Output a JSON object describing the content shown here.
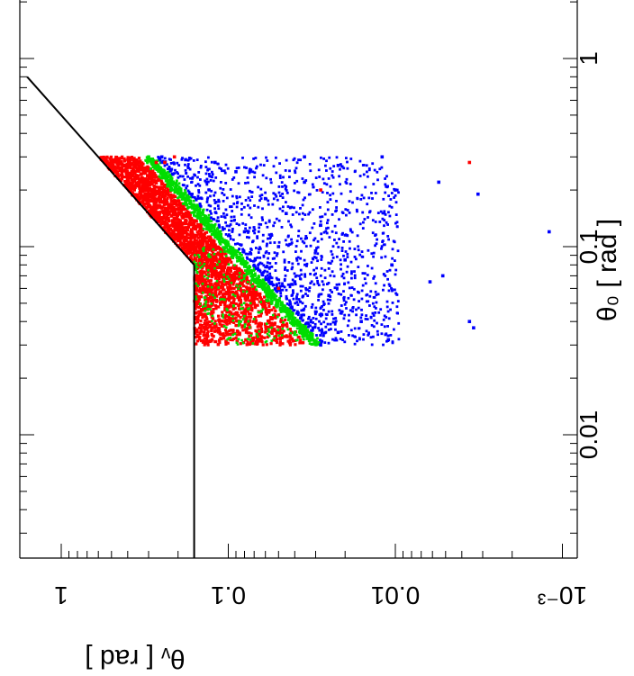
{
  "chart_data": {
    "type": "scatter",
    "title": "",
    "xlabel": "θ₀ [ rad ]",
    "ylabel": "θᵥ [ rad ]",
    "x_axis": {
      "quantity": "theta_0",
      "unit": "rad",
      "scale": "log",
      "range": [
        0.001,
        2.0
      ],
      "tick_labels": [
        {
          "value": 1,
          "label": "1"
        },
        {
          "value": 0.1,
          "label": "0.1"
        },
        {
          "value": 0.01,
          "label": "0.01"
        }
      ]
    },
    "y_axis": {
      "quantity": "theta_v",
      "unit": "rad",
      "scale": "log",
      "range": [
        0.001,
        2.0
      ],
      "tick_labels": [
        {
          "value": 1,
          "label": "1"
        },
        {
          "value": 0.1,
          "label": "0.1"
        },
        {
          "value": 0.01,
          "label": "0.01"
        },
        {
          "value": 0.001,
          "label": "10⁻³"
        }
      ]
    },
    "orientation": "figure rotated 90° clockwise: θ₀ axis runs vertically (increasing upward) with labels on the right; θᵥ axis runs horizontally (increasing leftward) with labels at the bottom",
    "grid": false,
    "legend": "none",
    "colors": {
      "red": "#ff0000",
      "green": "#00dd00",
      "blue": "#0000ff",
      "boundary": "#000000"
    },
    "boundary_lines": [
      {
        "name": "upper diagonal",
        "points": [
          {
            "theta0": 0.8,
            "thetav": 1.6
          },
          {
            "theta0": 0.08,
            "thetav": 0.16
          }
        ]
      },
      {
        "name": "plateau",
        "points": [
          {
            "theta0": 0.08,
            "thetav": 0.16
          },
          {
            "theta0": 0.001,
            "thetav": 0.16
          }
        ]
      }
    ],
    "regions": {
      "theta0_range": [
        0.03,
        0.3
      ],
      "red": {
        "description": "dense filled region between θᵥ ≈ max(0.16, 2·θ₀) and θᵥ ≈ θ₀·1.1"
      },
      "green": {
        "description": "thin band around θᵥ ≈ θ₀ (from about 0.9·θ₀ to 1.2·θ₀)"
      },
      "blue": {
        "description": "scattered points with θᵥ below θ₀, extending down to about 0.01 rad"
      }
    },
    "series": [
      {
        "name": "",
        "color": "blue",
        "points": [
          {
            "x": 0.3,
            "y": 0.25
          },
          {
            "x": 0.29,
            "y": 0.18
          },
          {
            "x": 0.28,
            "y": 0.12
          },
          {
            "x": 0.25,
            "y": 0.09
          },
          {
            "x": 0.22,
            "y": 0.035
          },
          {
            "x": 0.2,
            "y": 0.01
          },
          {
            "x": 0.3,
            "y": 0.012
          },
          {
            "x": 0.3,
            "y": 0.035
          },
          {
            "x": 0.27,
            "y": 0.022
          },
          {
            "x": 0.18,
            "y": 0.06
          },
          {
            "x": 0.15,
            "y": 0.045
          },
          {
            "x": 0.13,
            "y": 0.028
          },
          {
            "x": 0.12,
            "y": 0.08
          },
          {
            "x": 0.1,
            "y": 0.05
          },
          {
            "x": 0.095,
            "y": 0.03
          },
          {
            "x": 0.085,
            "y": 0.02
          },
          {
            "x": 0.08,
            "y": 0.0105
          },
          {
            "x": 0.065,
            "y": 0.04
          },
          {
            "x": 0.055,
            "y": 0.025
          },
          {
            "x": 0.045,
            "y": 0.03
          },
          {
            "x": 0.04,
            "y": 0.016
          },
          {
            "x": 0.035,
            "y": 0.022
          },
          {
            "x": 0.032,
            "y": 0.011
          },
          {
            "x": 0.03,
            "y": 0.028
          },
          {
            "x": 0.07,
            "y": 0.0052
          },
          {
            "x": 0.065,
            "y": 0.0062
          },
          {
            "x": 0.04,
            "y": 0.0036
          },
          {
            "x": 0.037,
            "y": 0.0034
          },
          {
            "x": 0.22,
            "y": 0.0055
          },
          {
            "x": 0.19,
            "y": 0.0032
          },
          {
            "x": 0.12,
            "y": 0.0012
          }
        ]
      },
      {
        "name": "",
        "color": "red",
        "points": [
          {
            "x": 0.28,
            "y": 0.0036
          },
          {
            "x": 0.2,
            "y": 0.028
          },
          {
            "x": 0.28,
            "y": 0.24
          },
          {
            "x": 0.3,
            "y": 0.21
          },
          {
            "x": 0.28,
            "y": 0.27
          },
          {
            "x": 0.06,
            "y": 0.05
          },
          {
            "x": 0.05,
            "y": 0.07
          }
        ]
      },
      {
        "name": "",
        "color": "green",
        "points": [
          {
            "x": 0.3,
            "y": 0.3
          },
          {
            "x": 0.2,
            "y": 0.22
          },
          {
            "x": 0.12,
            "y": 0.12
          },
          {
            "x": 0.07,
            "y": 0.08
          },
          {
            "x": 0.05,
            "y": 0.055
          },
          {
            "x": 0.035,
            "y": 0.04
          }
        ]
      }
    ]
  }
}
